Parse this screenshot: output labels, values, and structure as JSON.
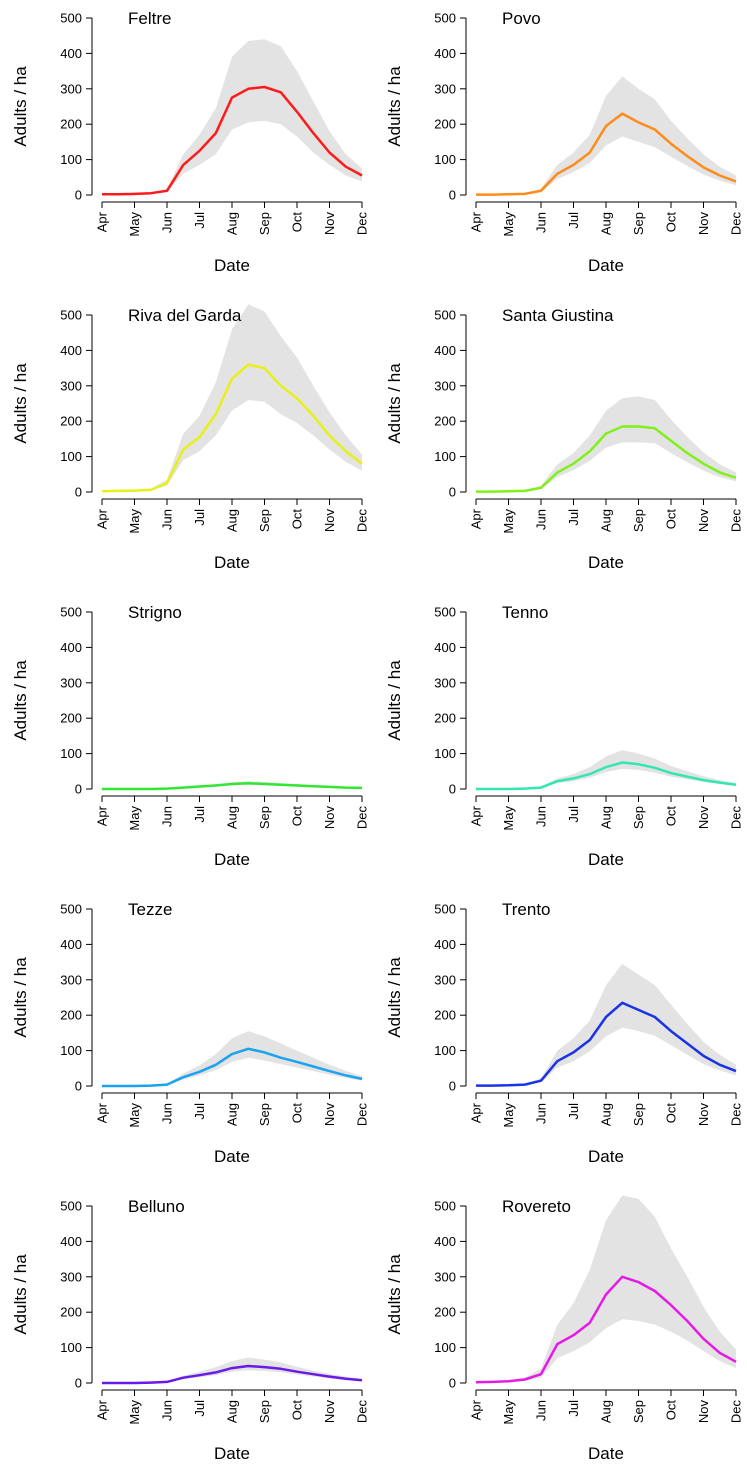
{
  "chart_data": {
    "type": "line",
    "xlabel": "Date",
    "ylabel": "Adults / ha",
    "ylim": [
      0,
      500
    ],
    "y_ticks": [
      "0",
      "100",
      "200",
      "300",
      "400",
      "500"
    ],
    "x_ticks": [
      "Apr",
      "May",
      "Jun",
      "Jul",
      "Aug",
      "Sep",
      "Oct",
      "Nov",
      "Dec"
    ],
    "x": [
      "Apr",
      "mid-Apr",
      "May",
      "mid-May",
      "Jun",
      "mid-Jun",
      "Jul",
      "mid-Jul",
      "Aug",
      "mid-Aug",
      "Sep",
      "mid-Sep",
      "Oct",
      "mid-Oct",
      "Nov",
      "mid-Nov",
      "Dec"
    ],
    "band_fill": "#e3e3e3",
    "panels": [
      {
        "title": "Feltre",
        "color": "#ff1a1a",
        "mean": [
          2,
          2,
          3,
          5,
          12,
          85,
          125,
          175,
          275,
          300,
          305,
          290,
          235,
          175,
          120,
          80,
          55
        ],
        "lower": [
          1,
          1,
          2,
          3,
          8,
          60,
          85,
          115,
          185,
          205,
          210,
          200,
          165,
          120,
          85,
          55,
          38
        ],
        "upper": [
          3,
          3,
          5,
          8,
          18,
          115,
          170,
          245,
          390,
          435,
          440,
          420,
          350,
          265,
          180,
          115,
          75
        ]
      },
      {
        "title": "Povo",
        "color": "#ff8c1a",
        "mean": [
          1,
          1,
          2,
          3,
          12,
          60,
          85,
          120,
          195,
          230,
          205,
          185,
          145,
          110,
          78,
          55,
          38
        ],
        "lower": [
          1,
          1,
          1,
          2,
          8,
          45,
          65,
          90,
          140,
          165,
          150,
          135,
          108,
          82,
          58,
          40,
          28
        ],
        "upper": [
          2,
          2,
          3,
          5,
          18,
          85,
          120,
          170,
          280,
          335,
          300,
          270,
          210,
          160,
          115,
          80,
          55
        ]
      },
      {
        "title": "Riva del Garda",
        "color": "#e8f01a",
        "mean": [
          2,
          3,
          4,
          6,
          25,
          120,
          155,
          220,
          320,
          360,
          350,
          300,
          265,
          215,
          160,
          115,
          80
        ],
        "lower": [
          1,
          2,
          3,
          4,
          18,
          90,
          115,
          160,
          230,
          260,
          255,
          220,
          195,
          160,
          120,
          85,
          60
        ],
        "upper": [
          3,
          4,
          6,
          9,
          35,
          165,
          215,
          310,
          460,
          530,
          510,
          440,
          380,
          300,
          225,
          160,
          105
        ]
      },
      {
        "title": "Santa Giustina",
        "color": "#80f01a",
        "mean": [
          1,
          1,
          2,
          3,
          12,
          55,
          80,
          115,
          165,
          185,
          185,
          180,
          145,
          110,
          80,
          55,
          40
        ],
        "lower": [
          1,
          1,
          1,
          2,
          8,
          42,
          62,
          88,
          125,
          140,
          140,
          138,
          110,
          84,
          60,
          42,
          30
        ],
        "upper": [
          2,
          2,
          3,
          5,
          18,
          78,
          110,
          160,
          230,
          265,
          270,
          260,
          205,
          155,
          112,
          78,
          55
        ]
      },
      {
        "title": "Strigno",
        "color": "#33e633",
        "mean": [
          0,
          0,
          0,
          0,
          1,
          4,
          7,
          10,
          14,
          16,
          14,
          12,
          10,
          8,
          6,
          4,
          3
        ],
        "lower": [
          0,
          0,
          0,
          0,
          1,
          3,
          5,
          8,
          11,
          12,
          11,
          10,
          8,
          6,
          5,
          3,
          2
        ],
        "upper": [
          0,
          0,
          0,
          0,
          2,
          6,
          10,
          14,
          19,
          22,
          20,
          17,
          14,
          11,
          8,
          6,
          4
        ]
      },
      {
        "title": "Tenno",
        "color": "#33e6b3",
        "mean": [
          0,
          0,
          0,
          1,
          4,
          22,
          30,
          42,
          62,
          75,
          70,
          60,
          45,
          35,
          25,
          18,
          12
        ],
        "lower": [
          0,
          0,
          0,
          1,
          3,
          16,
          22,
          32,
          48,
          57,
          54,
          46,
          35,
          27,
          20,
          14,
          9
        ],
        "upper": [
          1,
          1,
          1,
          2,
          6,
          30,
          42,
          62,
          92,
          110,
          100,
          86,
          65,
          50,
          36,
          25,
          17
        ]
      },
      {
        "title": "Tezze",
        "color": "#1aa3f0",
        "mean": [
          0,
          0,
          0,
          1,
          4,
          25,
          40,
          60,
          90,
          105,
          95,
          80,
          68,
          55,
          42,
          30,
          20
        ],
        "lower": [
          0,
          0,
          0,
          1,
          3,
          18,
          30,
          45,
          68,
          80,
          72,
          62,
          52,
          42,
          32,
          23,
          15
        ],
        "upper": [
          1,
          1,
          1,
          2,
          6,
          35,
          58,
          90,
          135,
          155,
          140,
          120,
          100,
          80,
          60,
          43,
          28
        ]
      },
      {
        "title": "Trento",
        "color": "#1a33e6",
        "mean": [
          1,
          1,
          2,
          4,
          15,
          70,
          95,
          130,
          195,
          235,
          215,
          195,
          155,
          120,
          85,
          60,
          42
        ],
        "lower": [
          1,
          1,
          1,
          3,
          10,
          52,
          70,
          98,
          140,
          165,
          155,
          142,
          115,
          88,
          62,
          44,
          30
        ],
        "upper": [
          2,
          2,
          3,
          6,
          22,
          100,
          135,
          185,
          285,
          345,
          315,
          285,
          230,
          175,
          125,
          88,
          60
        ]
      },
      {
        "title": "Belluno",
        "color": "#6a1ae6",
        "mean": [
          0,
          0,
          0,
          1,
          3,
          15,
          22,
          30,
          42,
          48,
          45,
          40,
          32,
          25,
          18,
          12,
          8
        ],
        "lower": [
          0,
          0,
          0,
          1,
          2,
          11,
          16,
          22,
          32,
          36,
          34,
          30,
          24,
          18,
          13,
          9,
          6
        ],
        "upper": [
          1,
          1,
          1,
          2,
          4,
          21,
          32,
          45,
          62,
          72,
          66,
          58,
          46,
          35,
          26,
          18,
          12
        ]
      },
      {
        "title": "Rovereto",
        "color": "#e61ae6",
        "mean": [
          2,
          3,
          5,
          10,
          25,
          110,
          135,
          170,
          250,
          300,
          285,
          260,
          220,
          175,
          125,
          85,
          60
        ],
        "lower": [
          1,
          2,
          3,
          6,
          15,
          70,
          90,
          115,
          155,
          180,
          175,
          165,
          145,
          120,
          90,
          62,
          42
        ],
        "upper": [
          4,
          5,
          8,
          15,
          40,
          165,
          225,
          320,
          460,
          530,
          520,
          470,
          380,
          300,
          215,
          145,
          95
        ]
      }
    ]
  }
}
